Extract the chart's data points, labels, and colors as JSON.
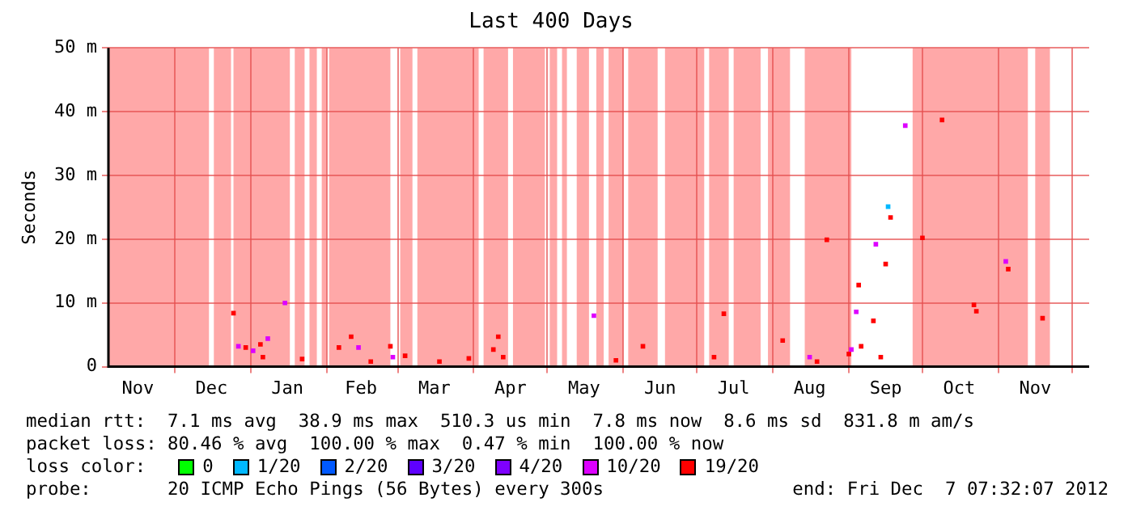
{
  "chart_data": {
    "type": "scatter",
    "title": "Last 400 Days",
    "ylabel": "Seconds",
    "marker": "square",
    "grid": true,
    "legend": "bottom",
    "legend_title": "loss color:",
    "xlim": [
      "2011-11-04",
      "2012-12-08"
    ],
    "xticks": [
      {
        "value": "2011-11-16",
        "label": "Nov"
      },
      {
        "value": "2011-12-01",
        "label": null
      },
      {
        "value": "2011-12-16",
        "label": "Dec"
      },
      {
        "value": "2012-01-01",
        "label": null
      },
      {
        "value": "2012-01-16",
        "label": "Jan"
      },
      {
        "value": "2012-02-01",
        "label": null
      },
      {
        "value": "2012-02-15",
        "label": "Feb"
      },
      {
        "value": "2012-03-01",
        "label": null
      },
      {
        "value": "2012-03-16",
        "label": "Mar"
      },
      {
        "value": "2012-04-01",
        "label": null
      },
      {
        "value": "2012-04-16",
        "label": "Apr"
      },
      {
        "value": "2012-05-01",
        "label": null
      },
      {
        "value": "2012-05-16",
        "label": "May"
      },
      {
        "value": "2012-06-01",
        "label": null
      },
      {
        "value": "2012-06-16",
        "label": "Jun"
      },
      {
        "value": "2012-07-01",
        "label": null
      },
      {
        "value": "2012-07-16",
        "label": "Jul"
      },
      {
        "value": "2012-08-01",
        "label": null
      },
      {
        "value": "2012-08-16",
        "label": "Aug"
      },
      {
        "value": "2012-09-01",
        "label": null
      },
      {
        "value": "2012-09-16",
        "label": "Sep"
      },
      {
        "value": "2012-10-01",
        "label": null
      },
      {
        "value": "2012-10-16",
        "label": "Oct"
      },
      {
        "value": "2012-11-01",
        "label": null
      },
      {
        "value": "2012-11-16",
        "label": "Nov"
      },
      {
        "value": "2012-12-01",
        "label": null
      }
    ],
    "ylim": [
      0,
      50
    ],
    "yticks": [
      0,
      {
        "value": 10,
        "label": "10 m"
      },
      {
        "value": 20,
        "label": "20 m"
      },
      {
        "value": 30,
        "label": "30 m"
      },
      {
        "value": 40,
        "label": "40 m"
      },
      {
        "value": 50,
        "label": "50 m"
      }
    ],
    "series": [
      {
        "name": "0",
        "color": "#00ff00"
      },
      {
        "name": "1/20",
        "color": "#00b8ff",
        "x": [
          "2012-09-17"
        ],
        "values": [
          25.1
        ]
      },
      {
        "name": "2/20",
        "color": "#0059ff"
      },
      {
        "name": "3/20",
        "color": "#5e00ff"
      },
      {
        "name": "4/20",
        "color": "#7e00ff"
      },
      {
        "name": "10/20",
        "color": "#dd00ff",
        "x": [
          "2011-12-27",
          "2012-01-02",
          "2012-01-08",
          "2012-01-15",
          "2012-02-14",
          "2012-02-28",
          "2012-05-20",
          "2012-08-16",
          "2012-09-02",
          "2012-09-04",
          "2012-09-12",
          "2012-09-24",
          "2012-11-04"
        ],
        "values": [
          3.2,
          2.5,
          4.4,
          10,
          3,
          1.5,
          8,
          1.5,
          2.7,
          8.6,
          19.2,
          37.8,
          16.5
        ]
      },
      {
        "name": "19/20",
        "color": "#ff0000",
        "x": [
          "2011-12-25",
          "2011-12-30",
          "2012-01-05",
          "2012-01-06",
          "2012-01-22",
          "2012-02-06",
          "2012-02-11",
          "2012-02-19",
          "2012-02-27",
          "2012-03-04",
          "2012-03-18",
          "2012-03-30",
          "2012-04-09",
          "2012-04-11",
          "2012-04-13",
          "2012-05-29",
          "2012-06-09",
          "2012-07-08",
          "2012-07-12",
          "2012-08-05",
          "2012-08-19",
          "2012-08-23",
          "2012-09-01",
          "2012-09-05",
          "2012-09-06",
          "2012-09-11",
          "2012-09-14",
          "2012-09-16",
          "2012-09-18",
          "2012-10-01",
          "2012-10-09",
          "2012-10-22",
          "2012-10-23",
          "2012-11-05",
          "2012-11-19"
        ],
        "values": [
          8.4,
          3,
          3.5,
          1.5,
          1.2,
          3,
          4.7,
          0.8,
          3.2,
          1.7,
          0.8,
          1.3,
          2.7,
          4.7,
          1.5,
          1,
          3.2,
          1.5,
          8.3,
          4.1,
          0.8,
          19.9,
          2,
          12.8,
          3.2,
          7.2,
          1.5,
          16.1,
          23.4,
          20.2,
          38.7,
          9.7,
          8.7,
          15.3,
          7.6
        ]
      }
    ],
    "bands": [
      {
        "axis": "x",
        "from": "2011-11-04",
        "to": "2011-12-15",
        "color": "#ffa8a8"
      },
      {
        "axis": "x",
        "from": "2011-12-17",
        "to": "2011-12-24",
        "color": "#ffa8a8"
      },
      {
        "axis": "x",
        "from": "2011-12-25",
        "to": "2012-01-17",
        "color": "#ffa8a8"
      },
      {
        "axis": "x",
        "from": "2012-01-19",
        "to": "2012-01-23",
        "color": "#ffa8a8"
      },
      {
        "axis": "x",
        "from": "2012-01-25",
        "to": "2012-01-28",
        "color": "#ffa8a8"
      },
      {
        "axis": "x",
        "from": "2012-01-30",
        "to": "2012-02-01",
        "color": "#ffa8a8"
      },
      {
        "axis": "x",
        "from": "2012-02-02",
        "to": "2012-02-27",
        "color": "#ffa8a8"
      },
      {
        "axis": "x",
        "from": "2012-03-02",
        "to": "2012-03-07",
        "color": "#ffa8a8"
      },
      {
        "axis": "x",
        "from": "2012-03-09",
        "to": "2012-04-03",
        "color": "#ffa8a8"
      },
      {
        "axis": "x",
        "from": "2012-04-05",
        "to": "2012-04-15",
        "color": "#ffa8a8"
      },
      {
        "axis": "x",
        "from": "2012-04-17",
        "to": "2012-04-30",
        "color": "#ffa8a8"
      },
      {
        "axis": "x",
        "from": "2012-05-02",
        "to": "2012-05-05",
        "color": "#ffa8a8"
      },
      {
        "axis": "x",
        "from": "2012-05-07",
        "to": "2012-05-09",
        "color": "#ffa8a8"
      },
      {
        "axis": "x",
        "from": "2012-05-13",
        "to": "2012-05-18",
        "color": "#ffa8a8"
      },
      {
        "axis": "x",
        "from": "2012-05-21",
        "to": "2012-05-24",
        "color": "#ffa8a8"
      },
      {
        "axis": "x",
        "from": "2012-05-26",
        "to": "2012-06-01",
        "color": "#ffa8a8"
      },
      {
        "axis": "x",
        "from": "2012-06-03",
        "to": "2012-06-15",
        "color": "#ffa8a8"
      },
      {
        "axis": "x",
        "from": "2012-06-18",
        "to": "2012-07-04",
        "color": "#ffa8a8"
      },
      {
        "axis": "x",
        "from": "2012-07-06",
        "to": "2012-07-14",
        "color": "#ffa8a8"
      },
      {
        "axis": "x",
        "from": "2012-07-16",
        "to": "2012-07-27",
        "color": "#ffa8a8"
      },
      {
        "axis": "x",
        "from": "2012-07-30",
        "to": "2012-08-08",
        "color": "#ffa8a8"
      },
      {
        "axis": "x",
        "from": "2012-08-14",
        "to": "2012-09-02",
        "color": "#ffa8a8"
      },
      {
        "axis": "x",
        "from": "2012-09-27",
        "to": "2012-11-13",
        "color": "#ffa8a8"
      },
      {
        "axis": "x",
        "from": "2012-11-16",
        "to": "2012-11-22",
        "color": "#ffa8a8"
      }
    ],
    "annotations": [
      "median rtt:  7.1 ms avg  38.9 ms max  510.3 us min  7.8 ms now  8.6 ms sd  831.8 m am/s",
      "packet loss: 80.46 % avg  100.00 % max  0.47 % min  100.00 % now",
      "probe:       20 ICMP Echo Pings (56 Bytes) every 300s",
      "end: Fri Dec  7 07:32:07 2012"
    ]
  }
}
